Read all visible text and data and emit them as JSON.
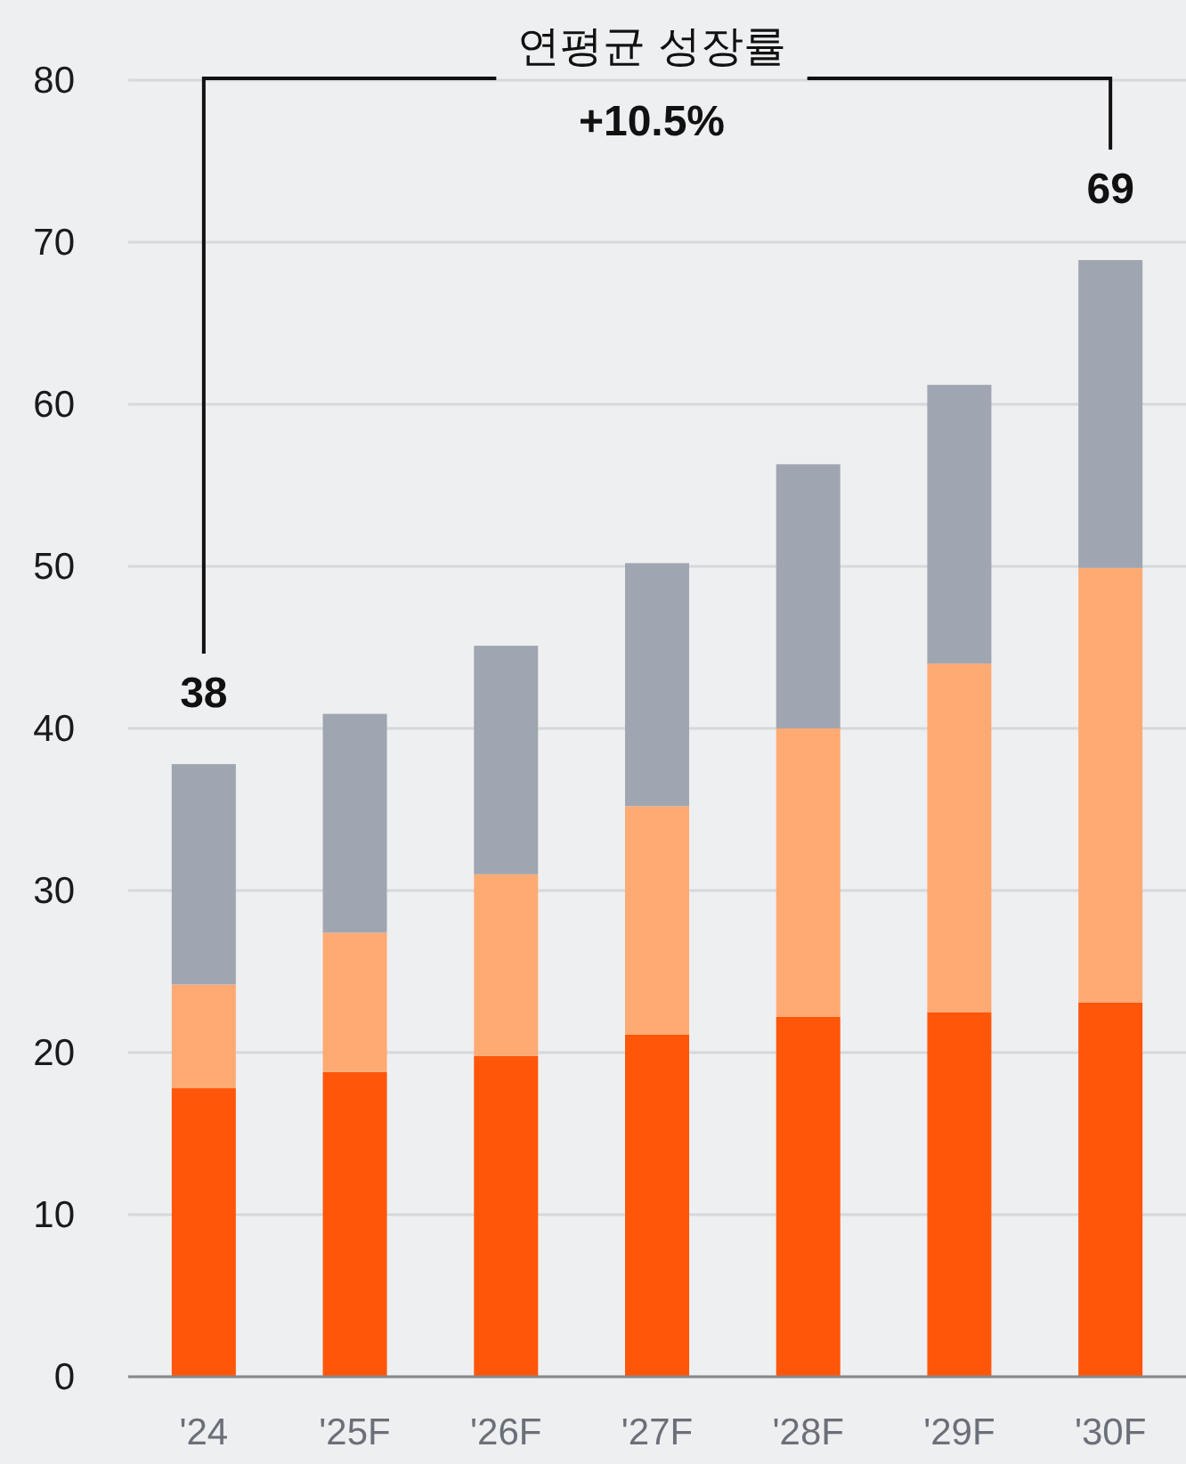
{
  "chart_data": {
    "type": "bar",
    "stacked": true,
    "categories": [
      "'24",
      "'25F",
      "'26F",
      "'27F",
      "'28F",
      "'29F",
      "'30F"
    ],
    "series": [
      {
        "color": "#ff560a",
        "values": [
          17.8,
          18.8,
          19.8,
          21.1,
          22.2,
          22.5,
          23.1
        ]
      },
      {
        "color": "#ffaa73",
        "values": [
          6.4,
          8.6,
          11.2,
          14.1,
          17.8,
          21.5,
          26.8
        ]
      },
      {
        "color": "#a0a6b1",
        "values": [
          13.6,
          13.5,
          14.1,
          15.0,
          16.3,
          17.2,
          19.0
        ]
      }
    ],
    "ylim": [
      0,
      80
    ],
    "yticks": [
      0,
      10,
      20,
      30,
      40,
      50,
      60,
      70,
      80
    ],
    "grid": "y",
    "totals": [
      "38",
      null,
      null,
      null,
      null,
      null,
      "69"
    ],
    "annotations": [
      "연평균 성장률",
      "+10.5%"
    ]
  }
}
